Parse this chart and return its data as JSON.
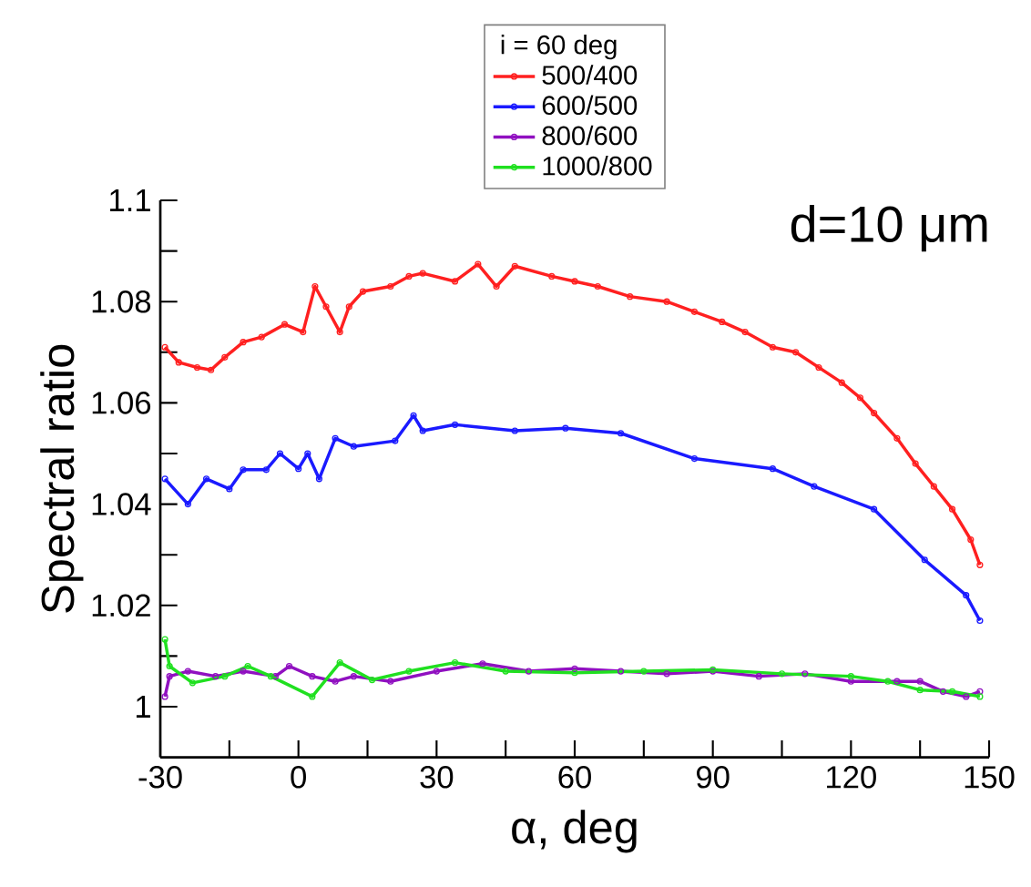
{
  "chart_data": {
    "type": "line",
    "xlabel": "α, deg",
    "ylabel": "Spectral ratio",
    "legend_title": "i = 60 deg",
    "legend": "top",
    "marker": "circle",
    "line_style": "solid",
    "grid": false,
    "annotations": [
      "d=10 μm"
    ],
    "xlim": [
      -30,
      150
    ],
    "ylim": [
      0.99,
      1.1
    ],
    "xticks": [
      -30,
      {
        "value": -15,
        "label": null
      },
      0,
      {
        "value": 15,
        "label": null
      },
      30,
      {
        "value": 45,
        "label": null
      },
      60,
      {
        "value": 75,
        "label": null
      },
      90,
      {
        "value": 105,
        "label": null
      },
      120,
      {
        "value": 135,
        "label": null
      },
      150
    ],
    "yticks": [
      1,
      {
        "value": 1.01,
        "label": null
      },
      1.02,
      {
        "value": 1.03,
        "label": null
      },
      1.04,
      {
        "value": 1.05,
        "label": null
      },
      1.06,
      {
        "value": 1.07,
        "label": null
      },
      1.08,
      {
        "value": 1.09,
        "label": null
      },
      1.1
    ],
    "series": [
      {
        "name": "500/400",
        "color": "#ff2020",
        "x": [
          -29,
          -26,
          -22,
          -19,
          -16,
          -12,
          -8,
          -3,
          1,
          3.6,
          6,
          9,
          11,
          14,
          20,
          24,
          27,
          34,
          39,
          43,
          47,
          55,
          60,
          65,
          72,
          80,
          86,
          92,
          97,
          103,
          108,
          113,
          118,
          122,
          125,
          130,
          134,
          138,
          142,
          146,
          148
        ],
        "values": [
          1.071,
          1.068,
          1.067,
          1.0665,
          1.069,
          1.072,
          1.073,
          1.0755,
          1.074,
          1.083,
          1.079,
          1.074,
          1.079,
          1.082,
          1.083,
          1.085,
          1.0856,
          1.084,
          1.0874,
          1.083,
          1.087,
          1.085,
          1.084,
          1.083,
          1.081,
          1.08,
          1.078,
          1.076,
          1.074,
          1.071,
          1.07,
          1.067,
          1.064,
          1.061,
          1.058,
          1.053,
          1.048,
          1.0435,
          1.039,
          1.033,
          1.028
        ]
      },
      {
        "name": "600/500",
        "color": "#1a1aff",
        "x": [
          -29,
          -24,
          -20,
          -15,
          -12,
          -7,
          -4,
          0,
          2,
          4.5,
          8,
          12,
          21,
          25,
          27,
          34,
          47,
          58,
          70,
          86,
          103,
          112,
          125,
          136,
          145,
          148
        ],
        "values": [
          1.045,
          1.04,
          1.045,
          1.043,
          1.0468,
          1.0468,
          1.05,
          1.047,
          1.05,
          1.045,
          1.053,
          1.0514,
          1.0525,
          1.0575,
          1.0545,
          1.0557,
          1.0545,
          1.055,
          1.054,
          1.049,
          1.047,
          1.0435,
          1.039,
          1.029,
          1.022,
          1.017
        ]
      },
      {
        "name": "800/600",
        "color": "#9010c0",
        "x": [
          -29,
          -28,
          -24,
          -18,
          -12,
          -5,
          -2,
          3,
          8,
          12,
          20,
          30,
          40,
          50,
          60,
          70,
          80,
          90,
          100,
          110,
          120,
          130,
          135,
          140,
          145,
          148
        ],
        "values": [
          1.002,
          1.006,
          1.007,
          1.006,
          1.007,
          1.006,
          1.008,
          1.006,
          1.005,
          1.006,
          1.005,
          1.007,
          1.0085,
          1.007,
          1.0075,
          1.007,
          1.0065,
          1.007,
          1.006,
          1.0065,
          1.005,
          1.005,
          1.005,
          1.003,
          1.002,
          1.003
        ]
      },
      {
        "name": "1000/800",
        "color": "#20e020",
        "x": [
          -29,
          -28,
          -23,
          -16,
          -11,
          -6,
          3,
          9,
          16,
          24,
          34,
          45,
          60,
          75,
          90,
          105,
          120,
          128,
          135,
          142,
          148
        ],
        "values": [
          1.0133,
          1.008,
          1.0047,
          1.006,
          1.008,
          1.006,
          1.002,
          1.0087,
          1.0053,
          1.007,
          1.0087,
          1.007,
          1.0067,
          1.007,
          1.0073,
          1.0065,
          1.006,
          1.005,
          1.0033,
          1.003,
          1.002
        ]
      }
    ]
  }
}
